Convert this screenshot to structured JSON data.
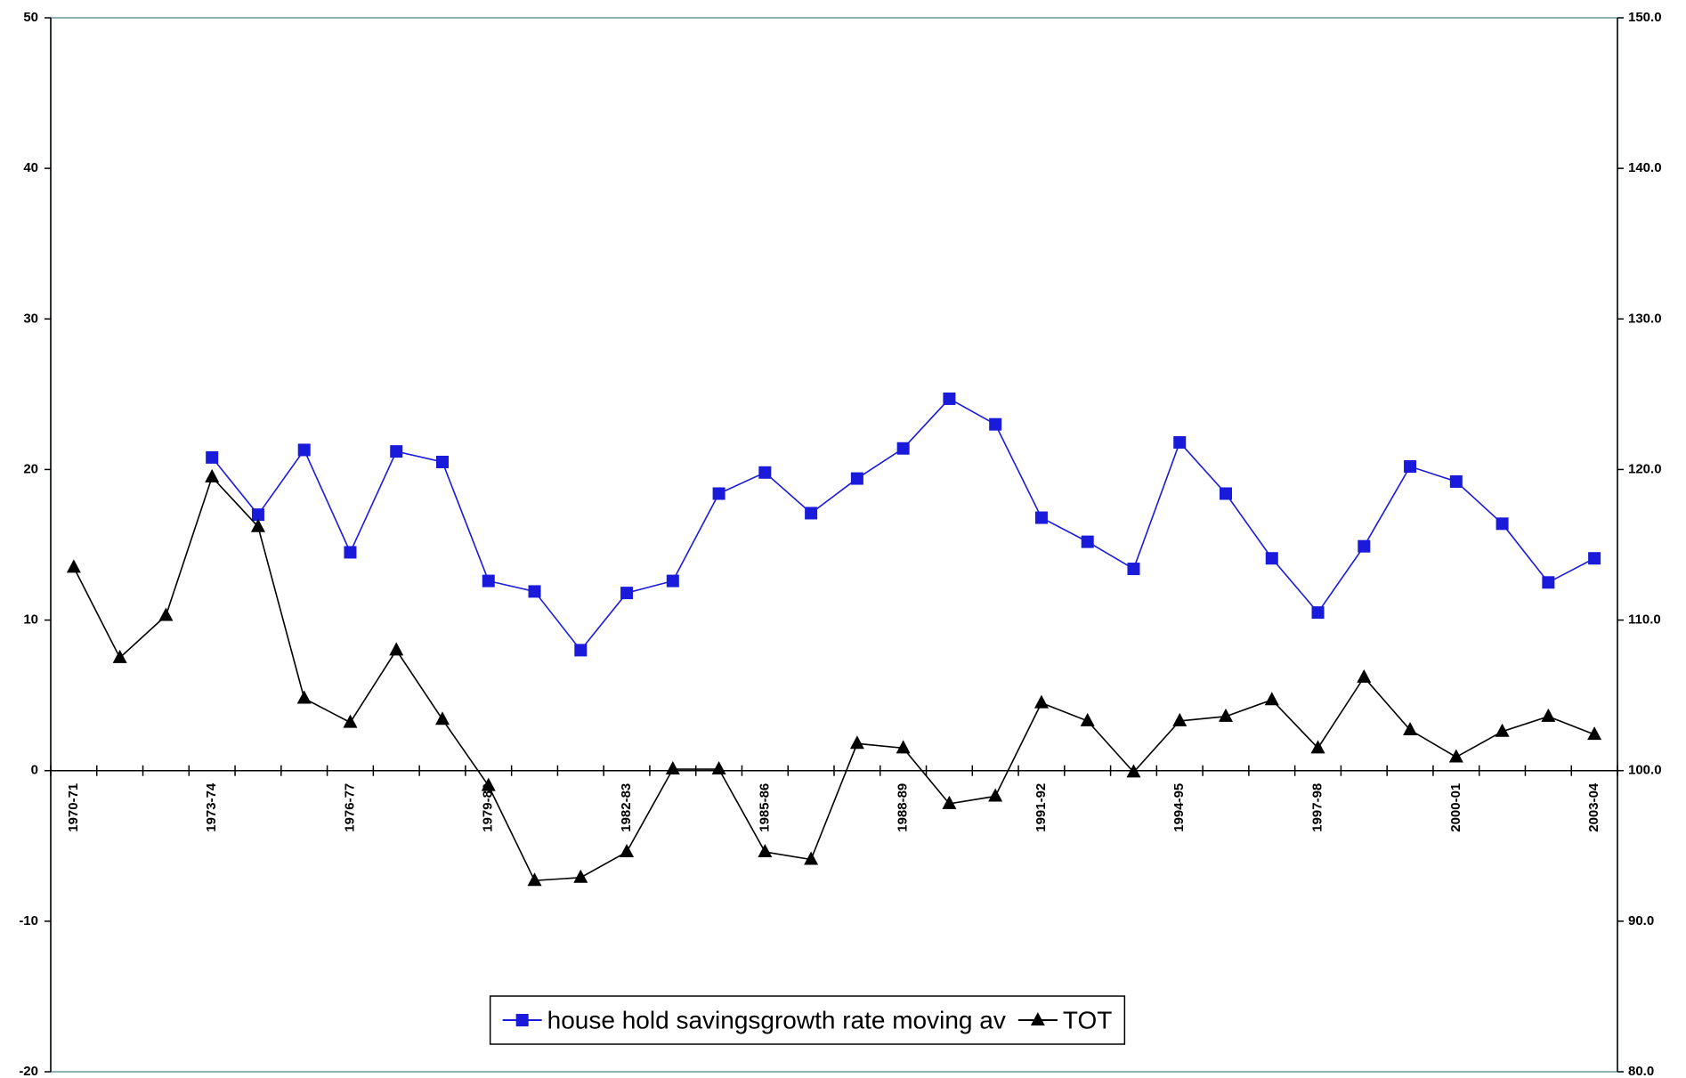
{
  "chart_data": {
    "type": "line",
    "categories": [
      "1970-71",
      null,
      null,
      "1973-74",
      null,
      null,
      "1976-77",
      null,
      null,
      "1979-80",
      null,
      null,
      "1982-83",
      null,
      null,
      "1985-86",
      null,
      null,
      "1988-89",
      null,
      null,
      "1991-92",
      null,
      null,
      "1994-95",
      null,
      null,
      "1997-98",
      null,
      null,
      "2000-01",
      null,
      null,
      "2003-04"
    ],
    "series": [
      {
        "name": "house hold savingsgrowth rate moving av",
        "color": "#1a1adb",
        "marker": "square",
        "values": [
          null,
          null,
          null,
          20.8,
          17.0,
          21.3,
          14.5,
          21.2,
          20.5,
          12.6,
          11.9,
          8.0,
          11.8,
          12.6,
          18.4,
          19.8,
          17.1,
          19.4,
          21.4,
          24.7,
          23.0,
          16.8,
          15.2,
          13.4,
          21.8,
          18.4,
          14.1,
          10.5,
          14.9,
          20.2,
          19.2,
          16.4,
          12.5,
          14.1
        ]
      },
      {
        "name": "TOT",
        "color": "#000000",
        "marker": "triangle",
        "axis": "y2",
        "values": [
          113.5,
          107.5,
          110.3,
          119.5,
          116.2,
          104.8,
          103.2,
          108.0,
          103.4,
          99.0,
          92.7,
          92.9,
          94.6,
          100.1,
          100.1,
          94.6,
          94.1,
          101.8,
          101.5,
          97.8,
          98.3,
          104.5,
          103.3,
          99.9,
          103.3,
          103.6,
          104.7,
          101.5,
          106.2,
          102.7,
          100.9,
          102.6,
          103.6,
          102.4
        ]
      }
    ],
    "ylim": [
      -20,
      50
    ],
    "yticks": [
      -20,
      -10,
      0,
      10,
      20,
      30,
      40,
      50
    ],
    "y2lim": [
      80,
      150
    ],
    "y2ticks": [
      {
        "value": 80,
        "label": "80.0"
      },
      {
        "value": 90,
        "label": "90.0"
      },
      {
        "value": 100,
        "label": "100.0"
      },
      {
        "value": 110,
        "label": "110.0"
      },
      {
        "value": 120,
        "label": "120.0"
      },
      {
        "value": 130,
        "label": "130.0"
      },
      {
        "value": 140,
        "label": "140.0"
      },
      {
        "value": 150,
        "label": "150.0"
      }
    ],
    "grid": false,
    "legend": "bottom"
  }
}
